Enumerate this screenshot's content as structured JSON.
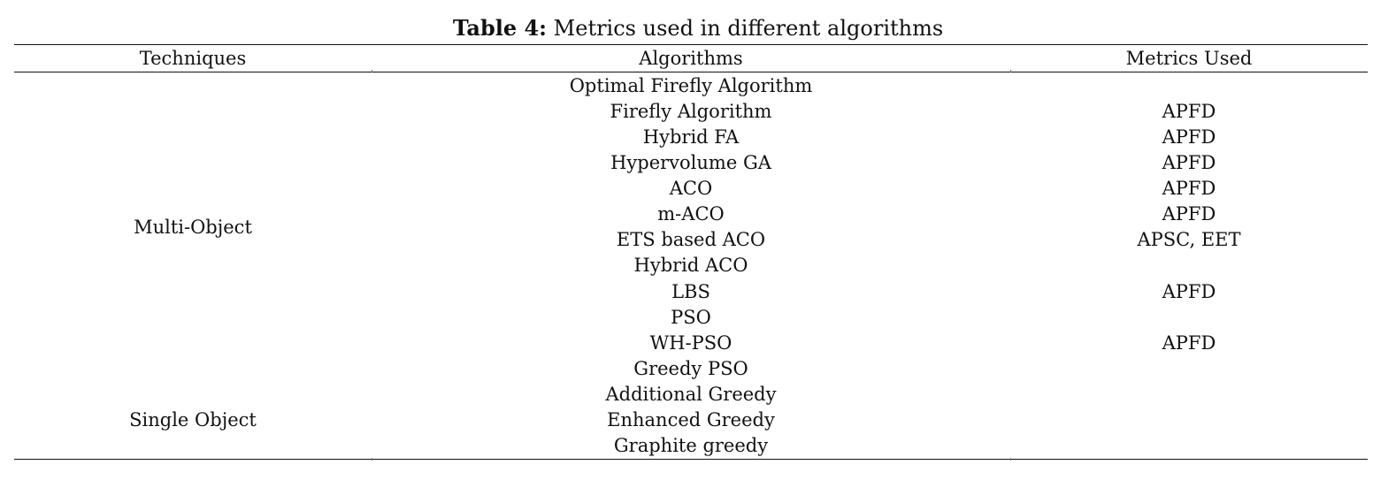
{
  "caption": {
    "label": "Table 4:",
    "text": " Metrics used in different algorithms"
  },
  "headers": {
    "techniques": "Techniques",
    "algorithms": "Algorithms",
    "metrics": "Metrics Used"
  },
  "techniques": {
    "multi": "Multi-Object",
    "single": "Single Object"
  },
  "rows": [
    {
      "algorithm": "Optimal Firefly Algorithm",
      "metric": ""
    },
    {
      "algorithm": "Firefly Algorithm",
      "metric": "APFD"
    },
    {
      "algorithm": "Hybrid FA",
      "metric": "APFD"
    },
    {
      "algorithm": "Hypervolume GA",
      "metric": "APFD"
    },
    {
      "algorithm": "ACO",
      "metric": "APFD"
    },
    {
      "algorithm": "m-ACO",
      "metric": "APFD"
    },
    {
      "algorithm": "ETS based ACO",
      "metric": "APSC, EET"
    },
    {
      "algorithm": "Hybrid ACO",
      "metric": ""
    },
    {
      "algorithm": "LBS",
      "metric": "APFD"
    },
    {
      "algorithm": "PSO",
      "metric": ""
    },
    {
      "algorithm": "WH-PSO",
      "metric": "APFD"
    },
    {
      "algorithm": "Greedy PSO",
      "metric": ""
    },
    {
      "algorithm": "Additional Greedy",
      "metric": ""
    },
    {
      "algorithm": "Enhanced Greedy",
      "metric": ""
    },
    {
      "algorithm": "Graphite greedy",
      "metric": ""
    }
  ]
}
